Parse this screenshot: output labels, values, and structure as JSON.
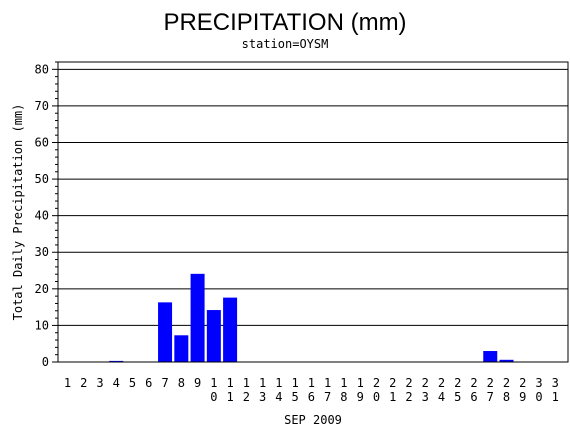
{
  "chart_data": {
    "type": "bar",
    "title": "PRECIPITATION (mm)",
    "subtitle": "station=OYSM",
    "xlabel": "SEP 2009",
    "ylabel": "Total Daily Precipitation (mm)",
    "ylim": [
      0,
      80
    ],
    "yticks": [
      0,
      10,
      20,
      30,
      40,
      50,
      60,
      70,
      80
    ],
    "grid": true,
    "bar_color": "#0000ff",
    "categories": [
      "1",
      "2",
      "3",
      "4",
      "5",
      "6",
      "7",
      "8",
      "9",
      "10",
      "11",
      "12",
      "13",
      "14",
      "15",
      "16",
      "17",
      "18",
      "19",
      "20",
      "21",
      "22",
      "23",
      "24",
      "25",
      "26",
      "27",
      "28",
      "29",
      "30",
      "31"
    ],
    "values": [
      0,
      0,
      0,
      0.3,
      0,
      0,
      16.3,
      7.3,
      24.1,
      14.2,
      17.6,
      0,
      0,
      0,
      0,
      0,
      0,
      0,
      0,
      0,
      0,
      0,
      0,
      0,
      0,
      0,
      3.0,
      0.6,
      0,
      0,
      0
    ]
  }
}
